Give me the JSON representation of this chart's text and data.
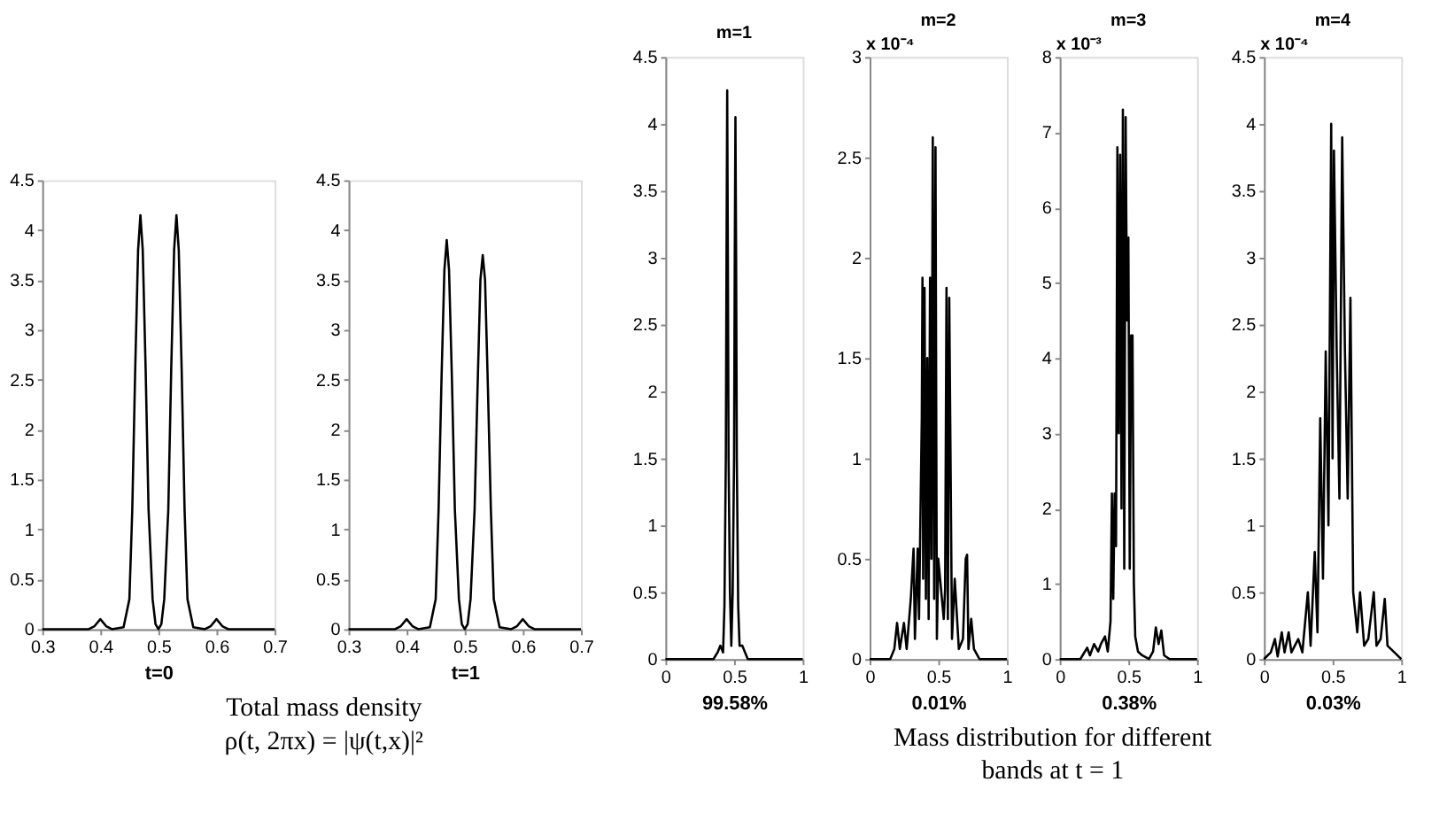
{
  "chart_data": [
    {
      "type": "line",
      "xlabel": "t=0",
      "annotations": [
        "Total mass density",
        "ρ(t, 2πx) = |ψ(t,x)|²"
      ],
      "xlim": [
        0.3,
        0.7
      ],
      "xticks": [
        0.3,
        0.4,
        0.5,
        0.6,
        0.7
      ],
      "ylim": [
        0,
        4.5
      ],
      "yticks": [
        0,
        0.5,
        1,
        1.5,
        2,
        2.5,
        3,
        3.5,
        4,
        4.5
      ],
      "grid": false,
      "legend": false,
      "x": [
        0.3,
        0.38,
        0.39,
        0.4,
        0.41,
        0.42,
        0.44,
        0.45,
        0.455,
        0.46,
        0.465,
        0.469,
        0.473,
        0.478,
        0.483,
        0.49,
        0.495,
        0.5,
        0.505,
        0.51,
        0.517,
        0.522,
        0.527,
        0.531,
        0.535,
        0.54,
        0.545,
        0.55,
        0.56,
        0.58,
        0.59,
        0.6,
        0.61,
        0.62,
        0.7
      ],
      "series": [
        {
          "color": "#000000",
          "values": [
            0,
            0,
            0.03,
            0.1,
            0.03,
            0,
            0.02,
            0.3,
            1.2,
            2.6,
            3.8,
            4.15,
            3.8,
            2.6,
            1.2,
            0.3,
            0.05,
            0,
            0.05,
            0.3,
            1.2,
            2.6,
            3.8,
            4.15,
            3.8,
            2.6,
            1.2,
            0.3,
            0.02,
            0,
            0.03,
            0.1,
            0.03,
            0,
            0
          ]
        }
      ]
    },
    {
      "type": "line",
      "xlabel": "t=1",
      "xlim": [
        0.3,
        0.7
      ],
      "xticks": [
        0.3,
        0.4,
        0.5,
        0.6,
        0.7
      ],
      "ylim": [
        0,
        4.5
      ],
      "yticks": [
        0,
        0.5,
        1,
        1.5,
        2,
        2.5,
        3,
        3.5,
        4,
        4.5
      ],
      "grid": false,
      "legend": false,
      "x": [
        0.3,
        0.38,
        0.39,
        0.4,
        0.41,
        0.42,
        0.44,
        0.45,
        0.455,
        0.46,
        0.465,
        0.469,
        0.473,
        0.478,
        0.483,
        0.49,
        0.495,
        0.5,
        0.505,
        0.51,
        0.517,
        0.522,
        0.527,
        0.531,
        0.535,
        0.54,
        0.545,
        0.55,
        0.56,
        0.58,
        0.59,
        0.6,
        0.61,
        0.62,
        0.7
      ],
      "series": [
        {
          "color": "#000000",
          "values": [
            0,
            0,
            0.03,
            0.1,
            0.03,
            0,
            0.02,
            0.3,
            1.2,
            2.5,
            3.6,
            3.9,
            3.6,
            2.5,
            1.2,
            0.3,
            0.05,
            0,
            0.05,
            0.3,
            1.2,
            2.4,
            3.5,
            3.75,
            3.5,
            2.4,
            1.2,
            0.3,
            0.02,
            0,
            0.03,
            0.1,
            0.03,
            0,
            0
          ]
        }
      ]
    },
    {
      "type": "line",
      "title": "m=1",
      "xlabel": "99.58%",
      "annotations": [
        "Mass distribution for different",
        "bands at t = 1"
      ],
      "xlim": [
        0,
        1
      ],
      "xticks": [
        0,
        0.5,
        1
      ],
      "ylim": [
        0,
        4.5
      ],
      "yticks": [
        0,
        0.5,
        1,
        1.5,
        2,
        2.5,
        3,
        3.5,
        4,
        4.5
      ],
      "grid": false,
      "legend": false,
      "x": [
        0,
        0.35,
        0.38,
        0.4,
        0.42,
        0.43,
        0.44,
        0.445,
        0.45,
        0.455,
        0.46,
        0.47,
        0.48,
        0.49,
        0.5,
        0.505,
        0.51,
        0.515,
        0.52,
        0.53,
        0.54,
        0.56,
        0.58,
        0.6,
        1
      ],
      "series": [
        {
          "color": "#000000",
          "values": [
            0,
            0,
            0.05,
            0.1,
            0.05,
            0.4,
            1.5,
            3,
            4.25,
            3,
            1.5,
            0.5,
            0.1,
            0.5,
            1.5,
            3,
            4.05,
            3,
            1.5,
            0.4,
            0.1,
            0.1,
            0.05,
            0,
            0
          ]
        }
      ]
    },
    {
      "type": "line",
      "title": "m=2",
      "xlabel": "0.01%",
      "annotations": [
        "x 10⁻⁴"
      ],
      "xlim": [
        0,
        1
      ],
      "xticks": [
        0,
        0.5,
        1
      ],
      "ylim": [
        0,
        3
      ],
      "yticks": [
        0,
        0.5,
        1,
        1.5,
        2,
        2.5,
        3
      ],
      "grid": false,
      "legend": false,
      "x": [
        0,
        0.15,
        0.18,
        0.2,
        0.22,
        0.25,
        0.27,
        0.3,
        0.32,
        0.33,
        0.35,
        0.36,
        0.38,
        0.385,
        0.39,
        0.4,
        0.41,
        0.42,
        0.43,
        0.44,
        0.45,
        0.46,
        0.47,
        0.48,
        0.49,
        0.5,
        0.52,
        0.54,
        0.55,
        0.56,
        0.57,
        0.58,
        0.6,
        0.62,
        0.65,
        0.68,
        0.7,
        0.71,
        0.72,
        0.74,
        0.76,
        0.8,
        1
      ],
      "series": [
        {
          "color": "#000000",
          "values": [
            0,
            0,
            0.05,
            0.18,
            0.05,
            0.18,
            0.05,
            0.3,
            0.55,
            0.1,
            0.55,
            0.2,
            1.2,
            1.9,
            0.4,
            1.85,
            0.3,
            1.5,
            0.2,
            1.9,
            0.5,
            2.6,
            0.3,
            2.55,
            0.1,
            0.5,
            0.35,
            0.2,
            0.35,
            1.85,
            0.2,
            1.8,
            0.1,
            0.4,
            0.05,
            0.1,
            0.5,
            0.52,
            0.05,
            0.2,
            0.05,
            0,
            0
          ]
        }
      ]
    },
    {
      "type": "line",
      "title": "m=3",
      "xlabel": "0.38%",
      "annotations": [
        "x 10⁻³"
      ],
      "xlim": [
        0,
        1
      ],
      "xticks": [
        0,
        0.5,
        1
      ],
      "ylim": [
        0,
        8
      ],
      "yticks": [
        0,
        1,
        2,
        3,
        4,
        5,
        6,
        7,
        8
      ],
      "grid": false,
      "legend": false,
      "x": [
        0,
        0.15,
        0.2,
        0.22,
        0.25,
        0.28,
        0.3,
        0.33,
        0.35,
        0.37,
        0.38,
        0.39,
        0.4,
        0.41,
        0.42,
        0.43,
        0.44,
        0.45,
        0.46,
        0.47,
        0.48,
        0.49,
        0.5,
        0.51,
        0.52,
        0.53,
        0.54,
        0.55,
        0.57,
        0.6,
        0.65,
        0.68,
        0.7,
        0.72,
        0.74,
        0.76,
        0.8,
        1
      ],
      "series": [
        {
          "color": "#000000",
          "values": [
            0,
            0,
            0.15,
            0.05,
            0.2,
            0.1,
            0.2,
            0.3,
            0.1,
            0.5,
            2.2,
            0.8,
            2.2,
            1.5,
            6.8,
            3,
            6.7,
            2,
            7.3,
            1.2,
            7.2,
            4.5,
            5.6,
            1.2,
            4.3,
            4.3,
            1,
            0.3,
            0.1,
            0.05,
            0,
            0.1,
            0.42,
            0.2,
            0.38,
            0.05,
            0,
            0
          ]
        }
      ]
    },
    {
      "type": "line",
      "title": "m=4",
      "xlabel": "0.03%",
      "annotations": [
        "x 10⁻⁴"
      ],
      "xlim": [
        0,
        1
      ],
      "xticks": [
        0,
        0.5,
        1
      ],
      "ylim": [
        0,
        4.5
      ],
      "yticks": [
        0,
        0.5,
        1,
        1.5,
        2,
        2.5,
        3,
        3.5,
        4,
        4.5
      ],
      "grid": false,
      "legend": false,
      "x": [
        0,
        0.05,
        0.08,
        0.1,
        0.13,
        0.15,
        0.18,
        0.2,
        0.25,
        0.28,
        0.32,
        0.34,
        0.37,
        0.39,
        0.41,
        0.43,
        0.45,
        0.47,
        0.49,
        0.5,
        0.51,
        0.53,
        0.55,
        0.57,
        0.59,
        0.61,
        0.63,
        0.65,
        0.68,
        0.7,
        0.73,
        0.76,
        0.8,
        0.82,
        0.85,
        0.88,
        0.9,
        0.95,
        1
      ],
      "series": [
        {
          "color": "#000000",
          "values": [
            0,
            0.05,
            0.15,
            0.02,
            0.2,
            0.05,
            0.2,
            0.05,
            0.15,
            0.05,
            0.5,
            0.1,
            0.8,
            0.2,
            1.8,
            0.6,
            2.3,
            1,
            4.0,
            1.5,
            3.8,
            2.3,
            1.2,
            3.9,
            2.3,
            1.2,
            2.7,
            0.5,
            0.2,
            0.5,
            0.1,
            0.15,
            0.5,
            0.1,
            0.15,
            0.45,
            0.1,
            0.05,
            0
          ]
        }
      ]
    }
  ]
}
